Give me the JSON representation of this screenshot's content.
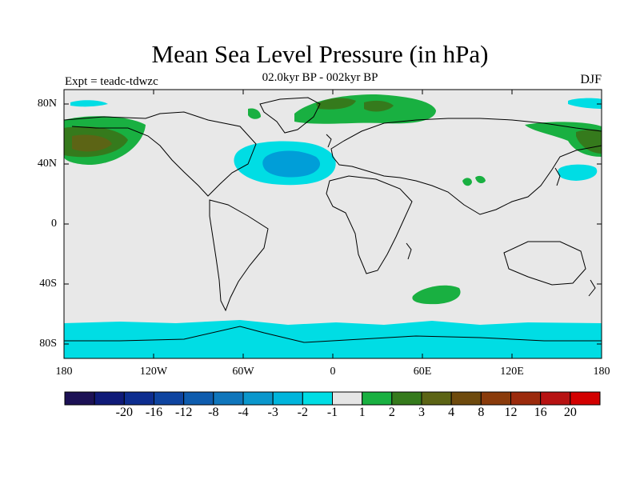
{
  "title": "Mean Sea Level Pressure (in hPa)",
  "subtitle": "02.0kyr BP - 002kyr BP",
  "left_label": "Expt = teadc-tdwzc",
  "right_label": "DJF",
  "lat_labels": [
    "80N",
    "40N",
    "0",
    "40S",
    "80S"
  ],
  "lon_labels": [
    "180",
    "120W",
    "60W",
    "0",
    "60E",
    "120E",
    "180"
  ],
  "colors": {
    "background": "#e8e8e8",
    "negative_1": "#00dde4",
    "negative_2": "#009ed8",
    "positive_1": "#19b041",
    "positive_2": "#357a1c",
    "positive_3": "#5c6415"
  },
  "colorbar": {
    "colors": [
      "#1c1155",
      "#0f1a78",
      "#0d2d8f",
      "#0e44a0",
      "#0e5cae",
      "#0f76bc",
      "#0a97cc",
      "#00b5dc",
      "#00dde4",
      "#e5e5e5",
      "#19b041",
      "#357a1c",
      "#5c6415",
      "#6e4a0d",
      "#8a3b0b",
      "#9b2a0c",
      "#b71212",
      "#d30000"
    ],
    "labels": [
      "-20",
      "-16",
      "-12",
      "-8",
      "-4",
      "-3",
      "-2",
      "-1",
      "1",
      "2",
      "3",
      "4",
      "8",
      "12",
      "16",
      "20"
    ]
  }
}
